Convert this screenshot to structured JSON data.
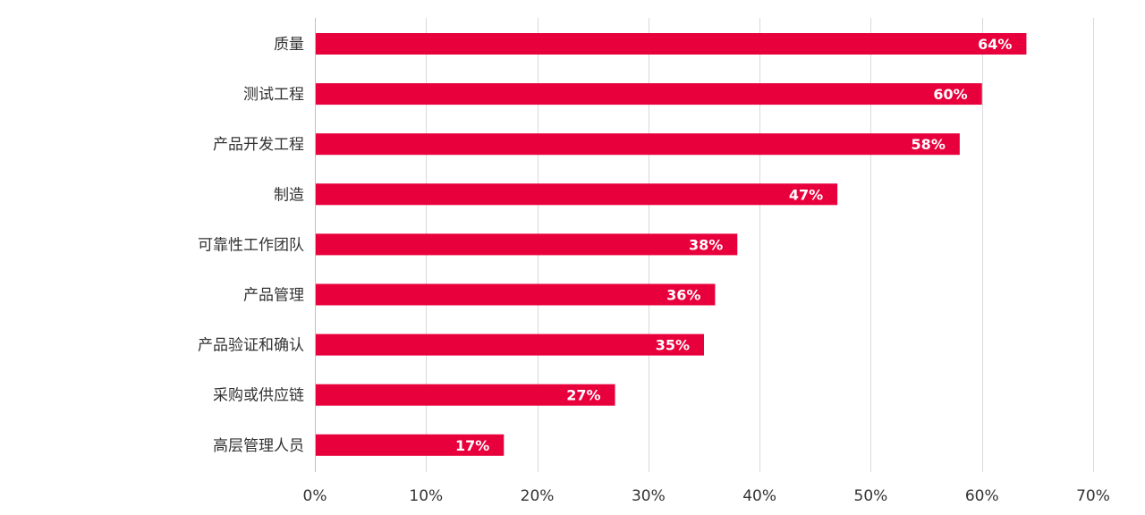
{
  "chart_data": {
    "type": "bar",
    "orientation": "horizontal",
    "categories": [
      "质量",
      "测试工程",
      "产品开发工程",
      "制造",
      "可靠性工作团队",
      "产品管理",
      "产品验证和确认",
      "采购或供应链",
      "高层管理人员"
    ],
    "values": [
      64,
      60,
      58,
      47,
      38,
      36,
      35,
      27,
      17
    ],
    "value_labels": [
      "64%",
      "60%",
      "58%",
      "47%",
      "38%",
      "36%",
      "35%",
      "27%",
      "17%"
    ],
    "xlim": [
      0,
      70
    ],
    "x_ticks": [
      0,
      10,
      20,
      30,
      40,
      50,
      60,
      70
    ],
    "x_tick_labels": [
      "0%",
      "10%",
      "20%",
      "30%",
      "40%",
      "50%",
      "60%",
      "70%"
    ],
    "grid": "vertical",
    "bar_color": "#e8003c",
    "value_label_color": "#ffffff",
    "gridline_color": "#d9d9d9",
    "text_color": "#333333"
  }
}
